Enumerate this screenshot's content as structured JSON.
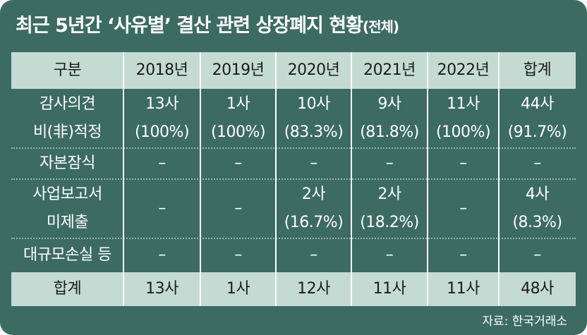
{
  "title": {
    "main": "최근 5년간 ‘사유별’ 결산 관련 상장폐지 현황",
    "suffix": "(전체)"
  },
  "table": {
    "header": [
      "구분",
      "2018년",
      "2019년",
      "2020년",
      "2021년",
      "2022년",
      "합계"
    ],
    "rows": [
      {
        "label_lines": [
          "감사의견",
          "비(非)적정"
        ],
        "cells": [
          [
            "13사",
            "(100%)"
          ],
          [
            "1사",
            "(100%)"
          ],
          [
            "10사",
            "(83.3%)"
          ],
          [
            "9사",
            "(81.8%)"
          ],
          [
            "11사",
            "(100%)"
          ],
          [
            "44사",
            "(91.7%)"
          ]
        ]
      },
      {
        "label_lines": [
          "자본잠식"
        ],
        "cells": [
          [
            "–"
          ],
          [
            "–"
          ],
          [
            "–"
          ],
          [
            "–"
          ],
          [
            "–"
          ],
          [
            "–"
          ]
        ]
      },
      {
        "label_lines": [
          "사업보고서",
          "미제출"
        ],
        "cells": [
          [
            "–"
          ],
          [
            "–"
          ],
          [
            "2사",
            "(16.7%)"
          ],
          [
            "2사",
            "(18.2%)"
          ],
          [
            "–"
          ],
          [
            "4사",
            "(8.3%)"
          ]
        ]
      },
      {
        "label_lines": [
          "대규모손실 등"
        ],
        "cells": [
          [
            "–"
          ],
          [
            "–"
          ],
          [
            "–"
          ],
          [
            "–"
          ],
          [
            "–"
          ],
          [
            "–"
          ]
        ]
      }
    ],
    "total": [
      "합계",
      "13사",
      "1사",
      "12사",
      "11사",
      "11사",
      "48사"
    ]
  },
  "source": "자료: 한국거래소",
  "colors": {
    "card": "#3c6b62",
    "band": "#c4dbd4",
    "text_light": "#ffffff",
    "text_dark": "#1c1c1c"
  }
}
